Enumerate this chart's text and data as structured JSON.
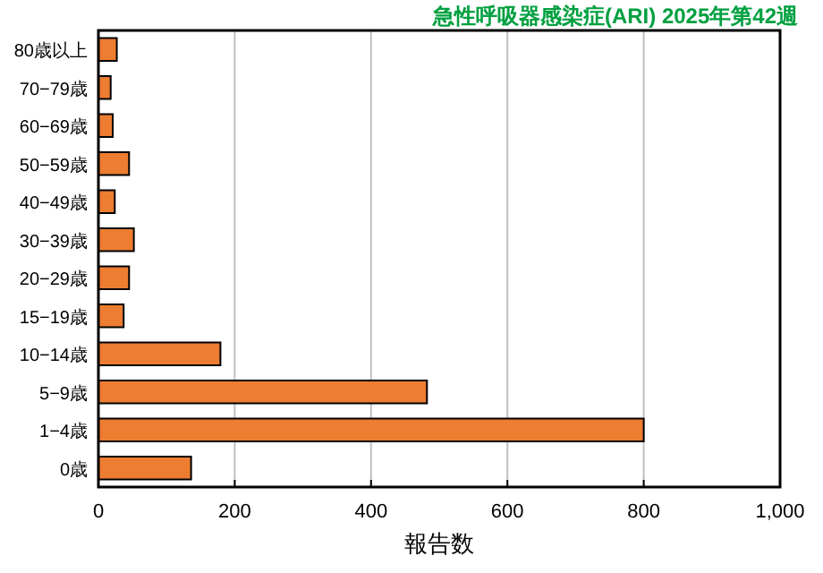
{
  "chart_data": {
    "type": "bar",
    "orientation": "horizontal",
    "title": "急性呼吸器感染症(ARI) 2025年第42週",
    "xlabel": "報告数",
    "categories": [
      "80歳以上",
      "70−79歳",
      "60−69歳",
      "50−59歳",
      "40−49歳",
      "30−39歳",
      "20−29歳",
      "15−19歳",
      "10−14歳",
      "5−9歳",
      "1−4歳",
      "0歳"
    ],
    "values": [
      27,
      18,
      21,
      45,
      24,
      52,
      45,
      37,
      179,
      482,
      800,
      136
    ],
    "color": "#ed7d31",
    "xlim": [
      0,
      1000
    ],
    "xticks": [
      0,
      200,
      400,
      600,
      800,
      {
        "value": 1000,
        "label": "1,000"
      }
    ],
    "grid": "x"
  }
}
